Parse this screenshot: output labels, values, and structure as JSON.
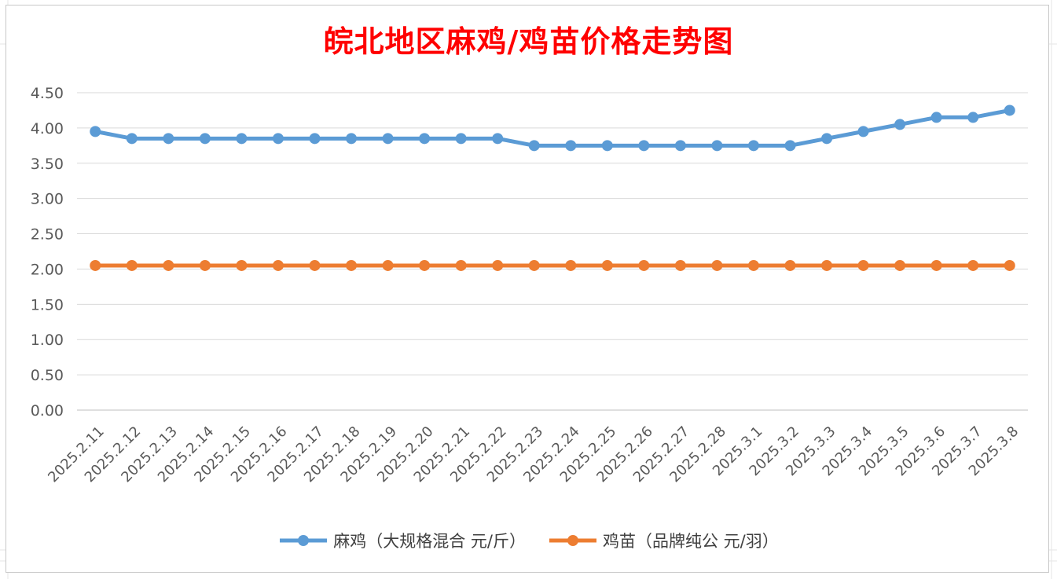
{
  "chart_data": {
    "type": "line",
    "title": "皖北地区麻鸡/鸡苗价格走势图",
    "categories": [
      "2025.2.11",
      "2025.2.12",
      "2025.2.13",
      "2025.2.14",
      "2025.2.15",
      "2025.2.16",
      "2025.2.17",
      "2025.2.18",
      "2025.2.19",
      "2025.2.20",
      "2025.2.21",
      "2025.2.22",
      "2025.2.23",
      "2025.2.24",
      "2025.2.25",
      "2025.2.26",
      "2025.2.27",
      "2025.2.28",
      "2025.3.1",
      "2025.3.2",
      "2025.3.3",
      "2025.3.4",
      "2025.3.5",
      "2025.3.6",
      "2025.3.7",
      "2025.3.8"
    ],
    "series": [
      {
        "name": "麻鸡（大规格混合 元/斤）",
        "color": "#5b9bd5",
        "values": [
          3.95,
          3.85,
          3.85,
          3.85,
          3.85,
          3.85,
          3.85,
          3.85,
          3.85,
          3.85,
          3.85,
          3.85,
          3.75,
          3.75,
          3.75,
          3.75,
          3.75,
          3.75,
          3.75,
          3.75,
          3.85,
          3.95,
          4.05,
          4.15,
          4.15,
          4.25
        ]
      },
      {
        "name": "鸡苗（品牌纯公 元/羽）",
        "color": "#ed7d31",
        "values": [
          2.05,
          2.05,
          2.05,
          2.05,
          2.05,
          2.05,
          2.05,
          2.05,
          2.05,
          2.05,
          2.05,
          2.05,
          2.05,
          2.05,
          2.05,
          2.05,
          2.05,
          2.05,
          2.05,
          2.05,
          2.05,
          2.05,
          2.05,
          2.05,
          2.05,
          2.05
        ]
      }
    ],
    "yticks": [
      "0.00",
      "0.50",
      "1.00",
      "1.50",
      "2.00",
      "2.50",
      "3.00",
      "3.50",
      "4.00",
      "4.50"
    ],
    "ylim": [
      0,
      4.5
    ],
    "grid": true,
    "legend_position": "bottom"
  }
}
